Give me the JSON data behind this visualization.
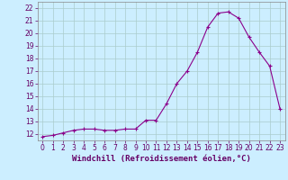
{
  "x": [
    0,
    1,
    2,
    3,
    4,
    5,
    6,
    7,
    8,
    9,
    10,
    11,
    12,
    13,
    14,
    15,
    16,
    17,
    18,
    19,
    20,
    21,
    22,
    23
  ],
  "y": [
    11.8,
    11.9,
    12.1,
    12.3,
    12.4,
    12.4,
    12.3,
    12.3,
    12.4,
    12.4,
    13.1,
    13.1,
    14.4,
    16.0,
    17.0,
    18.5,
    20.5,
    21.6,
    21.7,
    21.2,
    19.7,
    18.5,
    17.4,
    14.0
  ],
  "line_color": "#8B008B",
  "marker": "+",
  "bg_color": "#cceeff",
  "grid_color": "#aacccc",
  "xlabel": "Windchill (Refroidissement éolien,°C)",
  "xlim": [
    -0.5,
    23.5
  ],
  "ylim": [
    11.5,
    22.5
  ],
  "yticks": [
    12,
    13,
    14,
    15,
    16,
    17,
    18,
    19,
    20,
    21,
    22
  ],
  "xticks": [
    0,
    1,
    2,
    3,
    4,
    5,
    6,
    7,
    8,
    9,
    10,
    11,
    12,
    13,
    14,
    15,
    16,
    17,
    18,
    19,
    20,
    21,
    22,
    23
  ],
  "tick_fontsize": 5.5,
  "xlabel_fontsize": 6.5,
  "line_width": 0.8,
  "marker_size": 3
}
